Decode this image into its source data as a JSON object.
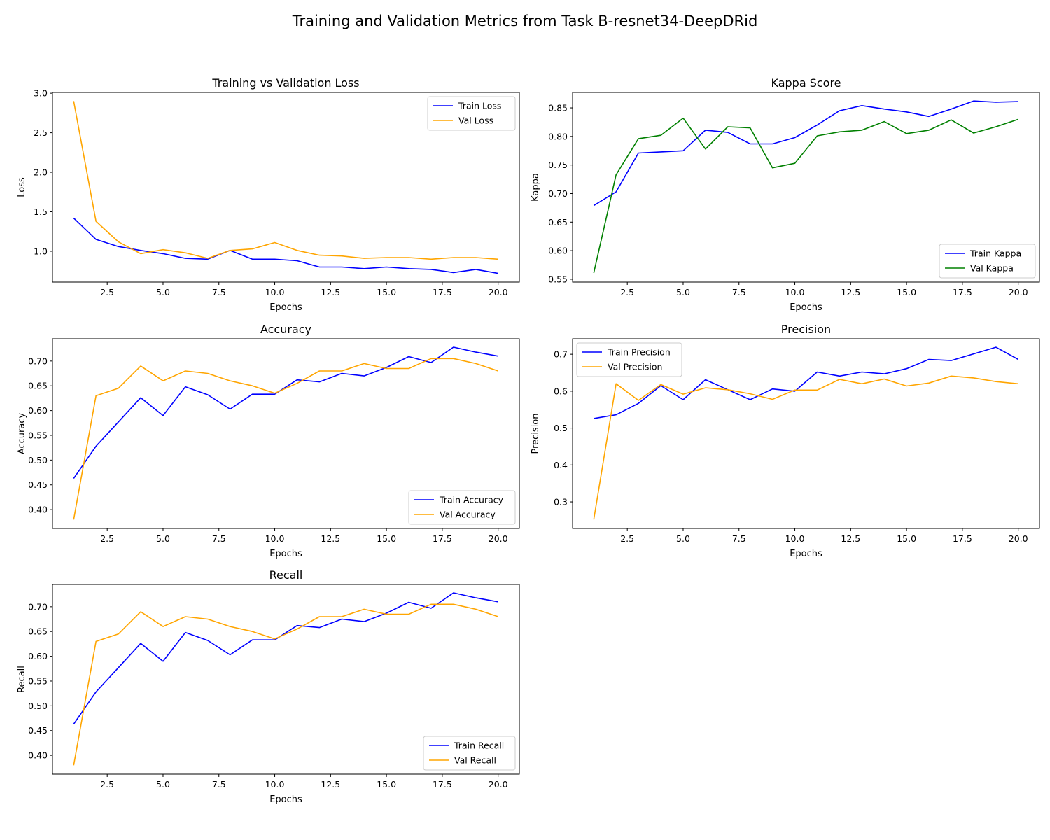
{
  "figure": {
    "title": "Training and Validation Metrics from Task B-resnet34-DeepDRid"
  },
  "colors": {
    "train": "#0000ff",
    "val": "#ffa500",
    "val_kappa": "#008000"
  },
  "chart_data": [
    {
      "type": "line",
      "title": "Training vs Validation Loss",
      "xlabel": "Epochs",
      "ylabel": "Loss",
      "xlim": [
        0.05,
        20.95
      ],
      "ylim": [
        0.61,
        3.01
      ],
      "xticks": [
        2.5,
        5.0,
        7.5,
        10.0,
        12.5,
        15.0,
        17.5,
        20.0
      ],
      "xtick_labels": [
        "2.5",
        "5.0",
        "7.5",
        "10.0",
        "12.5",
        "15.0",
        "17.5",
        "20.0"
      ],
      "yticks": [
        1.0,
        1.5,
        2.0,
        2.5,
        3.0
      ],
      "ytick_labels": [
        "1.0",
        "1.5",
        "2.0",
        "2.5",
        "3.0"
      ],
      "legend": "upper right",
      "grid": false,
      "x": [
        1,
        2,
        3,
        4,
        5,
        6,
        7,
        8,
        9,
        10,
        11,
        12,
        13,
        14,
        15,
        16,
        17,
        18,
        19,
        20
      ],
      "series": [
        {
          "name": "Train Loss",
          "color": "#0000ff",
          "values": [
            1.42,
            1.15,
            1.06,
            1.01,
            0.97,
            0.91,
            0.9,
            1.01,
            0.9,
            0.9,
            0.88,
            0.8,
            0.8,
            0.78,
            0.8,
            0.78,
            0.77,
            0.73,
            0.77,
            0.72
          ]
        },
        {
          "name": "Val Loss",
          "color": "#ffa500",
          "values": [
            2.9,
            1.38,
            1.12,
            0.97,
            1.02,
            0.98,
            0.91,
            1.01,
            1.03,
            1.11,
            1.01,
            0.95,
            0.94,
            0.91,
            0.92,
            0.92,
            0.9,
            0.92,
            0.92,
            0.9
          ]
        }
      ]
    },
    {
      "type": "line",
      "title": "Kappa Score",
      "xlabel": "Epochs",
      "ylabel": "Kappa",
      "xlim": [
        0.05,
        20.95
      ],
      "ylim": [
        0.545,
        0.877
      ],
      "xticks": [
        2.5,
        5.0,
        7.5,
        10.0,
        12.5,
        15.0,
        17.5,
        20.0
      ],
      "xtick_labels": [
        "2.5",
        "5.0",
        "7.5",
        "10.0",
        "12.5",
        "15.0",
        "17.5",
        "20.0"
      ],
      "yticks": [
        0.55,
        0.6,
        0.65,
        0.7,
        0.75,
        0.8,
        0.85
      ],
      "ytick_labels": [
        "0.55",
        "0.60",
        "0.65",
        "0.70",
        "0.75",
        "0.80",
        "0.85"
      ],
      "legend": "lower right",
      "grid": false,
      "x": [
        1,
        2,
        3,
        4,
        5,
        6,
        7,
        8,
        9,
        10,
        11,
        12,
        13,
        14,
        15,
        16,
        17,
        18,
        19,
        20
      ],
      "series": [
        {
          "name": "Train Kappa",
          "color": "#0000ff",
          "values": [
            0.679,
            0.703,
            0.771,
            0.773,
            0.775,
            0.811,
            0.807,
            0.787,
            0.787,
            0.798,
            0.82,
            0.845,
            0.854,
            0.848,
            0.843,
            0.835,
            0.848,
            0.862,
            0.86,
            0.861
          ]
        },
        {
          "name": "Val Kappa",
          "color": "#008000",
          "values": [
            0.561,
            0.733,
            0.796,
            0.802,
            0.832,
            0.778,
            0.817,
            0.815,
            0.745,
            0.753,
            0.801,
            0.808,
            0.811,
            0.826,
            0.805,
            0.811,
            0.829,
            0.806,
            0.817,
            0.83
          ]
        }
      ]
    },
    {
      "type": "line",
      "title": "Accuracy",
      "xlabel": "Epochs",
      "ylabel": "Accuracy",
      "xlim": [
        0.05,
        20.95
      ],
      "ylim": [
        0.362,
        0.745
      ],
      "xticks": [
        2.5,
        5.0,
        7.5,
        10.0,
        12.5,
        15.0,
        17.5,
        20.0
      ],
      "xtick_labels": [
        "2.5",
        "5.0",
        "7.5",
        "10.0",
        "12.5",
        "15.0",
        "17.5",
        "20.0"
      ],
      "yticks": [
        0.4,
        0.45,
        0.5,
        0.55,
        0.6,
        0.65,
        0.7
      ],
      "ytick_labels": [
        "0.40",
        "0.45",
        "0.50",
        "0.55",
        "0.60",
        "0.65",
        "0.70"
      ],
      "legend": "lower right",
      "grid": false,
      "x": [
        1,
        2,
        3,
        4,
        5,
        6,
        7,
        8,
        9,
        10,
        11,
        12,
        13,
        14,
        15,
        16,
        17,
        18,
        19,
        20
      ],
      "series": [
        {
          "name": "Train Accuracy",
          "color": "#0000ff",
          "values": [
            0.463,
            0.528,
            0.577,
            0.626,
            0.59,
            0.648,
            0.632,
            0.603,
            0.633,
            0.633,
            0.662,
            0.658,
            0.675,
            0.67,
            0.687,
            0.709,
            0.697,
            0.728,
            0.718,
            0.71
          ]
        },
        {
          "name": "Val Accuracy",
          "color": "#ffa500",
          "values": [
            0.38,
            0.63,
            0.645,
            0.69,
            0.66,
            0.68,
            0.675,
            0.66,
            0.65,
            0.635,
            0.655,
            0.68,
            0.68,
            0.695,
            0.685,
            0.685,
            0.705,
            0.705,
            0.695,
            0.68
          ]
        }
      ]
    },
    {
      "type": "line",
      "title": "Precision",
      "xlabel": "Epochs",
      "ylabel": "Precision",
      "xlim": [
        0.05,
        20.95
      ],
      "ylim": [
        0.228,
        0.742
      ],
      "xticks": [
        2.5,
        5.0,
        7.5,
        10.0,
        12.5,
        15.0,
        17.5,
        20.0
      ],
      "xtick_labels": [
        "2.5",
        "5.0",
        "7.5",
        "10.0",
        "12.5",
        "15.0",
        "17.5",
        "20.0"
      ],
      "yticks": [
        0.3,
        0.4,
        0.5,
        0.6,
        0.7
      ],
      "ytick_labels": [
        "0.3",
        "0.4",
        "0.5",
        "0.6",
        "0.7"
      ],
      "legend": "upper left",
      "grid": false,
      "x": [
        1,
        2,
        3,
        4,
        5,
        6,
        7,
        8,
        9,
        10,
        11,
        12,
        13,
        14,
        15,
        16,
        17,
        18,
        19,
        20
      ],
      "series": [
        {
          "name": "Train Precision",
          "color": "#0000ff",
          "values": [
            0.526,
            0.536,
            0.567,
            0.615,
            0.577,
            0.631,
            0.604,
            0.577,
            0.606,
            0.6,
            0.652,
            0.641,
            0.652,
            0.647,
            0.661,
            0.686,
            0.683,
            0.701,
            0.719,
            0.686
          ]
        },
        {
          "name": "Val Precision",
          "color": "#ffa500",
          "values": [
            0.252,
            0.62,
            0.575,
            0.618,
            0.592,
            0.609,
            0.604,
            0.593,
            0.578,
            0.603,
            0.603,
            0.632,
            0.62,
            0.633,
            0.614,
            0.622,
            0.641,
            0.636,
            0.626,
            0.62
          ]
        }
      ]
    },
    {
      "type": "line",
      "title": "Recall",
      "xlabel": "Epochs",
      "ylabel": "Recall",
      "xlim": [
        0.05,
        20.95
      ],
      "ylim": [
        0.362,
        0.745
      ],
      "xticks": [
        2.5,
        5.0,
        7.5,
        10.0,
        12.5,
        15.0,
        17.5,
        20.0
      ],
      "xtick_labels": [
        "2.5",
        "5.0",
        "7.5",
        "10.0",
        "12.5",
        "15.0",
        "17.5",
        "20.0"
      ],
      "yticks": [
        0.4,
        0.45,
        0.5,
        0.55,
        0.6,
        0.65,
        0.7
      ],
      "ytick_labels": [
        "0.40",
        "0.45",
        "0.50",
        "0.55",
        "0.60",
        "0.65",
        "0.70"
      ],
      "legend": "lower right",
      "grid": false,
      "x": [
        1,
        2,
        3,
        4,
        5,
        6,
        7,
        8,
        9,
        10,
        11,
        12,
        13,
        14,
        15,
        16,
        17,
        18,
        19,
        20
      ],
      "series": [
        {
          "name": "Train Recall",
          "color": "#0000ff",
          "values": [
            0.463,
            0.528,
            0.577,
            0.626,
            0.59,
            0.648,
            0.632,
            0.603,
            0.633,
            0.633,
            0.662,
            0.658,
            0.675,
            0.67,
            0.687,
            0.709,
            0.697,
            0.728,
            0.718,
            0.71
          ]
        },
        {
          "name": "Val Recall",
          "color": "#ffa500",
          "values": [
            0.38,
            0.63,
            0.645,
            0.69,
            0.66,
            0.68,
            0.675,
            0.66,
            0.65,
            0.635,
            0.655,
            0.68,
            0.68,
            0.695,
            0.685,
            0.685,
            0.705,
            0.705,
            0.695,
            0.68
          ]
        }
      ]
    }
  ]
}
